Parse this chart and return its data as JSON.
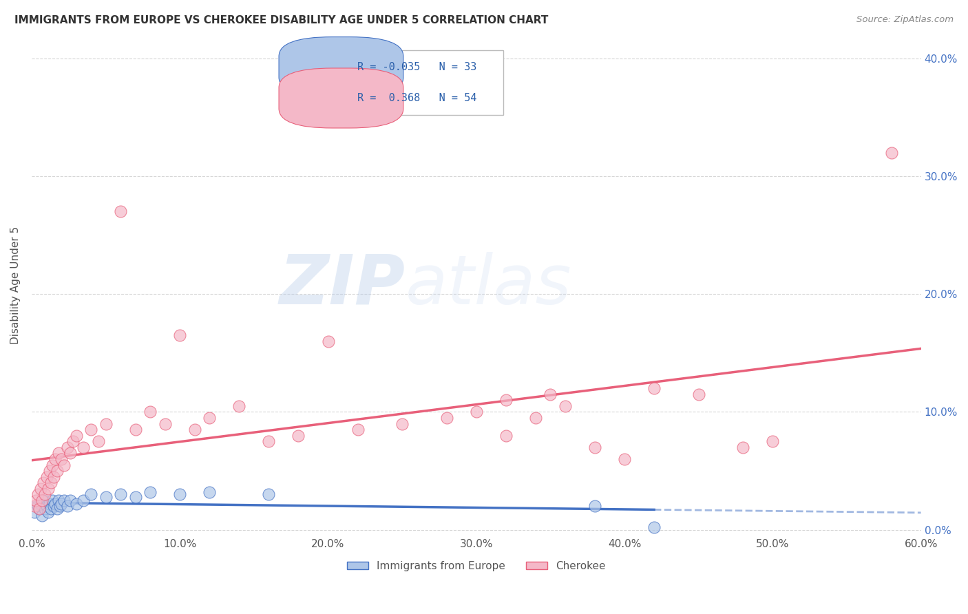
{
  "title": "IMMIGRANTS FROM EUROPE VS CHEROKEE DISABILITY AGE UNDER 5 CORRELATION CHART",
  "source": "Source: ZipAtlas.com",
  "ylabel": "Disability Age Under 5",
  "legend_label1": "Immigrants from Europe",
  "legend_label2": "Cherokee",
  "r1": -0.035,
  "n1": 33,
  "r2": 0.368,
  "n2": 54,
  "xlim": [
    0.0,
    0.6
  ],
  "ylim": [
    -0.005,
    0.42
  ],
  "xticks": [
    0.0,
    0.1,
    0.2,
    0.3,
    0.4,
    0.5,
    0.6
  ],
  "yticks": [
    0.0,
    0.1,
    0.2,
    0.3,
    0.4
  ],
  "ytick_labels_right": [
    "0.0%",
    "10.0%",
    "20.0%",
    "30.0%",
    "40.0%"
  ],
  "xtick_labels": [
    "0.0%",
    "10.0%",
    "20.0%",
    "30.0%",
    "40.0%",
    "50.0%",
    "60.0%"
  ],
  "color_blue": "#aec6e8",
  "color_pink": "#f4b8c8",
  "line_color_blue": "#4472c4",
  "line_color_pink": "#e8607a",
  "background": "#ffffff",
  "watermark_zip": "ZIP",
  "watermark_atlas": "atlas",
  "blue_scatter_x": [
    0.002,
    0.004,
    0.005,
    0.006,
    0.007,
    0.008,
    0.009,
    0.01,
    0.011,
    0.012,
    0.013,
    0.014,
    0.015,
    0.016,
    0.017,
    0.018,
    0.019,
    0.02,
    0.022,
    0.024,
    0.026,
    0.03,
    0.035,
    0.04,
    0.05,
    0.06,
    0.07,
    0.08,
    0.1,
    0.12,
    0.16,
    0.38,
    0.42
  ],
  "blue_scatter_y": [
    0.015,
    0.02,
    0.018,
    0.022,
    0.012,
    0.025,
    0.018,
    0.02,
    0.015,
    0.022,
    0.018,
    0.025,
    0.02,
    0.022,
    0.018,
    0.025,
    0.02,
    0.022,
    0.025,
    0.02,
    0.025,
    0.022,
    0.025,
    0.03,
    0.028,
    0.03,
    0.028,
    0.032,
    0.03,
    0.032,
    0.03,
    0.02,
    0.002
  ],
  "pink_scatter_x": [
    0.002,
    0.003,
    0.004,
    0.005,
    0.006,
    0.007,
    0.008,
    0.009,
    0.01,
    0.011,
    0.012,
    0.013,
    0.014,
    0.015,
    0.016,
    0.017,
    0.018,
    0.02,
    0.022,
    0.024,
    0.026,
    0.028,
    0.03,
    0.035,
    0.04,
    0.045,
    0.05,
    0.06,
    0.07,
    0.08,
    0.09,
    0.1,
    0.11,
    0.12,
    0.14,
    0.16,
    0.18,
    0.2,
    0.22,
    0.25,
    0.28,
    0.3,
    0.32,
    0.35,
    0.38,
    0.4,
    0.42,
    0.45,
    0.48,
    0.5,
    0.32,
    0.34,
    0.36,
    0.58
  ],
  "pink_scatter_y": [
    0.02,
    0.025,
    0.03,
    0.018,
    0.035,
    0.025,
    0.04,
    0.03,
    0.045,
    0.035,
    0.05,
    0.04,
    0.055,
    0.045,
    0.06,
    0.05,
    0.065,
    0.06,
    0.055,
    0.07,
    0.065,
    0.075,
    0.08,
    0.07,
    0.085,
    0.075,
    0.09,
    0.27,
    0.085,
    0.1,
    0.09,
    0.165,
    0.085,
    0.095,
    0.105,
    0.075,
    0.08,
    0.16,
    0.085,
    0.09,
    0.095,
    0.1,
    0.08,
    0.115,
    0.07,
    0.06,
    0.12,
    0.115,
    0.07,
    0.075,
    0.11,
    0.095,
    0.105,
    0.32
  ]
}
